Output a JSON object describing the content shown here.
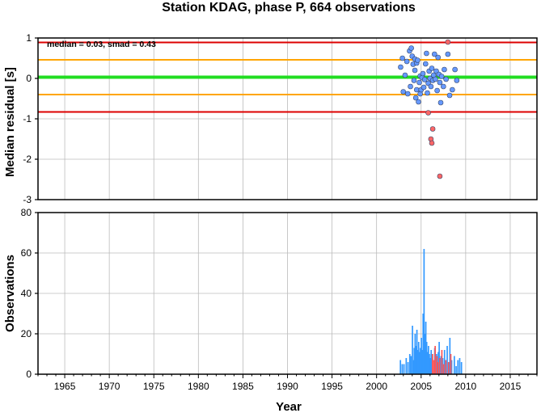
{
  "chart_data": [
    {
      "type": "scatter",
      "title": "Station KDAG, phase P, 664 observations",
      "ylabel": "Median residual [s]",
      "annotation": "median = 0.03, smad = 0.43",
      "xlim": [
        1962,
        2018
      ],
      "ylim": [
        -3,
        1
      ],
      "yticks": [
        1,
        0,
        -1,
        -2,
        -3
      ],
      "grid": true,
      "reference_lines": [
        {
          "value": 0.03,
          "color": "#22dd22"
        },
        {
          "value": 0.46,
          "color": "#ffa500"
        },
        {
          "value": -0.4,
          "color": "#ffa500"
        },
        {
          "value": 0.89,
          "color": "#dd0000"
        },
        {
          "value": -0.83,
          "color": "#dd0000"
        }
      ],
      "series": [
        {
          "color": "#6699ff",
          "points": [
            [
              2002.7,
              0.28
            ],
            [
              2002.9,
              0.5
            ],
            [
              2003.0,
              -0.33
            ],
            [
              2003.2,
              0.08
            ],
            [
              2003.4,
              0.42
            ],
            [
              2003.5,
              -0.38
            ],
            [
              2003.7,
              0.68
            ],
            [
              2003.8,
              -0.2
            ],
            [
              2003.9,
              0.75
            ],
            [
              2004.0,
              0.55
            ],
            [
              2004.1,
              0.35
            ],
            [
              2004.2,
              -0.05
            ],
            [
              2004.3,
              0.48
            ],
            [
              2004.3,
              0.2
            ],
            [
              2004.4,
              -0.48
            ],
            [
              2004.5,
              0.38
            ],
            [
              2004.5,
              -0.28
            ],
            [
              2004.6,
              0.45
            ],
            [
              2004.7,
              -0.58
            ],
            [
              2004.8,
              -0.1
            ],
            [
              2004.9,
              0.06
            ],
            [
              2004.9,
              -0.38
            ],
            [
              2005.0,
              -0.28
            ],
            [
              2005.1,
              0.02
            ],
            [
              2005.2,
              0.12
            ],
            [
              2005.3,
              -0.22
            ],
            [
              2005.4,
              -0.03
            ],
            [
              2005.5,
              0.36
            ],
            [
              2005.6,
              0.62
            ],
            [
              2005.7,
              -0.36
            ],
            [
              2005.8,
              -0.12
            ],
            [
              2005.9,
              0.18
            ],
            [
              2006.0,
              0.0
            ],
            [
              2006.1,
              -0.2
            ],
            [
              2006.2,
              0.25
            ],
            [
              2006.3,
              -0.05
            ],
            [
              2006.4,
              0.08
            ],
            [
              2006.5,
              0.6
            ],
            [
              2006.6,
              -0.02
            ],
            [
              2006.7,
              0.18
            ],
            [
              2006.8,
              -0.3
            ],
            [
              2006.9,
              0.52
            ],
            [
              2007.0,
              0.1
            ],
            [
              2007.1,
              -0.1
            ],
            [
              2007.2,
              -0.6
            ],
            [
              2007.3,
              0.05
            ],
            [
              2007.5,
              -0.2
            ],
            [
              2007.6,
              0.22
            ],
            [
              2007.8,
              -0.02
            ],
            [
              2008.0,
              0.6
            ],
            [
              2008.2,
              -0.42
            ],
            [
              2008.5,
              -0.28
            ],
            [
              2008.8,
              0.22
            ],
            [
              2009.0,
              -0.05
            ]
          ]
        },
        {
          "color": "#ff6666",
          "points": [
            [
              2005.8,
              -0.85
            ],
            [
              2006.1,
              -1.5
            ],
            [
              2006.2,
              -1.6
            ],
            [
              2006.3,
              -1.25
            ],
            [
              2007.1,
              -2.42
            ],
            [
              2008.0,
              0.9
            ]
          ]
        }
      ]
    },
    {
      "type": "bar",
      "xlabel": "Year",
      "ylabel": "Observations",
      "xlim": [
        1962,
        2018
      ],
      "ylim": [
        0,
        80
      ],
      "yticks": [
        0,
        20,
        40,
        60,
        80
      ],
      "xticks": [
        1965,
        1970,
        1975,
        1980,
        1985,
        1990,
        1995,
        2000,
        2005,
        2010,
        2015
      ],
      "grid": true,
      "bar_width_years": 0.1,
      "series": [
        {
          "color": "#3399ff",
          "bars": [
            [
              2002.65,
              7
            ],
            [
              2002.85,
              5
            ],
            [
              2003.05,
              5
            ],
            [
              2003.3,
              8
            ],
            [
              2003.5,
              6
            ],
            [
              2003.7,
              10
            ],
            [
              2003.85,
              9
            ],
            [
              2004.0,
              24
            ],
            [
              2004.1,
              7
            ],
            [
              2004.2,
              13
            ],
            [
              2004.3,
              20
            ],
            [
              2004.4,
              14
            ],
            [
              2004.5,
              22
            ],
            [
              2004.6,
              12
            ],
            [
              2004.7,
              16
            ],
            [
              2004.8,
              11
            ],
            [
              2004.9,
              13
            ],
            [
              2005.0,
              18
            ],
            [
              2005.1,
              12
            ],
            [
              2005.2,
              30
            ],
            [
              2005.3,
              62
            ],
            [
              2005.4,
              20
            ],
            [
              2005.5,
              26
            ],
            [
              2005.6,
              16
            ],
            [
              2005.7,
              11
            ],
            [
              2005.8,
              14
            ],
            [
              2005.9,
              10
            ],
            [
              2006.0,
              8
            ],
            [
              2006.1,
              12
            ],
            [
              2006.2,
              9
            ],
            [
              2006.5,
              13
            ],
            [
              2006.7,
              10
            ],
            [
              2006.9,
              11
            ],
            [
              2007.0,
              16
            ],
            [
              2007.2,
              9
            ],
            [
              2007.4,
              8
            ],
            [
              2007.6,
              12
            ],
            [
              2007.9,
              14
            ],
            [
              2008.2,
              18
            ],
            [
              2008.4,
              7
            ],
            [
              2008.7,
              9
            ],
            [
              2008.9,
              4
            ],
            [
              2009.1,
              7
            ],
            [
              2009.3,
              8
            ],
            [
              2009.5,
              6
            ]
          ]
        },
        {
          "color": "#ff5555",
          "bars": [
            [
              2006.25,
              10
            ],
            [
              2006.4,
              7
            ],
            [
              2006.55,
              14
            ],
            [
              2006.75,
              9
            ],
            [
              2006.85,
              6
            ],
            [
              2007.05,
              8
            ],
            [
              2007.3,
              12
            ],
            [
              2007.5,
              5
            ],
            [
              2007.75,
              7
            ],
            [
              2008.05,
              6
            ],
            [
              2008.3,
              10
            ]
          ]
        }
      ]
    }
  ]
}
